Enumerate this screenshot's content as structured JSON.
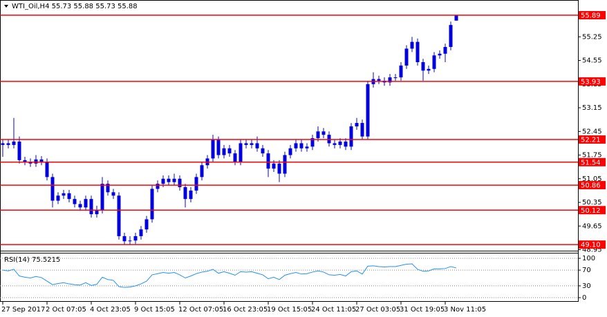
{
  "header": "WTI_Oil,H4  55.73 55.88 55.73 55.88",
  "chart_data": [
    {
      "type": "candlestick",
      "categories": [
        "27 Sep 2017",
        null,
        null,
        null,
        null,
        null,
        null,
        null,
        "2 Oct 07:05",
        null,
        null,
        null,
        null,
        null,
        null,
        null,
        "4 Oct 23:05",
        null,
        null,
        null,
        null,
        null,
        null,
        null,
        "9 Oct 15:05",
        null,
        null,
        null,
        null,
        null,
        null,
        null,
        "12 Oct 07:05",
        null,
        null,
        null,
        null,
        null,
        null,
        null,
        "16 Oct 23:05",
        null,
        null,
        null,
        null,
        null,
        null,
        null,
        "19 Oct 15:05",
        null,
        null,
        null,
        null,
        null,
        null,
        null,
        "24 Oct 11:05",
        null,
        null,
        null,
        null,
        null,
        null,
        null,
        "27 Oct 03:05",
        null,
        null,
        null,
        null,
        null,
        null,
        null,
        "31 Oct 19:05",
        null,
        null,
        null,
        null,
        null,
        null,
        null,
        "3 Nov 11:05",
        null,
        null
      ],
      "open": [
        52.05,
        52.1,
        52.05,
        52.15,
        51.6,
        51.55,
        51.5,
        51.62,
        51.55,
        51.1,
        50.4,
        50.55,
        50.62,
        50.45,
        50.3,
        50.2,
        50.45,
        50.0,
        50.12,
        50.9,
        50.65,
        50.55,
        49.35,
        49.2,
        49.22,
        49.35,
        49.55,
        49.85,
        50.75,
        50.9,
        51.05,
        50.95,
        51.05,
        50.8,
        50.45,
        50.7,
        51.1,
        51.45,
        51.65,
        52.2,
        51.75,
        51.95,
        51.8,
        51.55,
        52.1,
        52.05,
        52.1,
        51.95,
        51.8,
        51.35,
        51.5,
        51.2,
        51.75,
        51.95,
        52.1,
        51.95,
        52.0,
        52.25,
        52.45,
        52.35,
        52.1,
        52.05,
        52.15,
        52.0,
        52.6,
        52.7,
        52.3,
        53.85,
        54.0,
        53.95,
        53.9,
        54.05,
        54.05,
        54.4,
        54.9,
        55.1,
        54.5,
        54.25,
        54.3,
        54.7,
        54.75,
        54.95,
        55.73
      ],
      "high": [
        52.2,
        52.2,
        52.85,
        52.3,
        51.7,
        51.65,
        51.75,
        51.72,
        51.65,
        51.2,
        50.65,
        50.72,
        50.72,
        50.55,
        50.4,
        50.55,
        50.55,
        50.25,
        51.1,
        51.0,
        50.75,
        50.65,
        49.45,
        49.35,
        49.45,
        49.65,
        49.95,
        50.85,
        51.0,
        51.15,
        51.15,
        51.2,
        51.15,
        50.9,
        50.8,
        51.2,
        51.55,
        51.75,
        52.35,
        52.3,
        52.05,
        52.05,
        51.9,
        52.2,
        52.2,
        52.2,
        52.3,
        52.05,
        51.9,
        51.6,
        51.6,
        51.85,
        52.05,
        52.2,
        52.2,
        52.1,
        52.35,
        52.6,
        52.55,
        52.45,
        52.2,
        52.25,
        52.25,
        52.7,
        52.85,
        52.8,
        53.95,
        54.2,
        54.1,
        54.05,
        54.15,
        54.15,
        54.5,
        55.0,
        55.25,
        55.2,
        54.6,
        54.4,
        54.8,
        54.85,
        55.05,
        55.7,
        55.88
      ],
      "low": [
        51.7,
        51.95,
        51.95,
        51.5,
        51.45,
        51.4,
        51.4,
        51.45,
        51.0,
        50.2,
        50.3,
        50.45,
        50.35,
        50.2,
        50.1,
        50.1,
        49.9,
        49.9,
        50.02,
        50.55,
        50.45,
        49.25,
        49.1,
        49.1,
        49.12,
        49.25,
        49.45,
        49.75,
        50.65,
        50.8,
        50.85,
        50.85,
        50.7,
        50.2,
        50.35,
        50.6,
        51.0,
        51.35,
        51.55,
        51.65,
        51.65,
        51.7,
        51.45,
        51.45,
        51.95,
        51.95,
        51.85,
        51.7,
        51.1,
        51.25,
        50.95,
        51.1,
        51.65,
        51.85,
        51.85,
        51.85,
        51.9,
        52.15,
        52.25,
        52.0,
        51.95,
        51.95,
        51.9,
        51.9,
        52.5,
        52.2,
        52.2,
        53.75,
        53.85,
        53.8,
        53.8,
        53.95,
        53.95,
        54.3,
        54.8,
        54.4,
        53.95,
        54.15,
        54.2,
        54.6,
        54.5,
        54.85,
        55.73
      ],
      "close": [
        52.1,
        52.05,
        52.15,
        51.6,
        51.55,
        51.5,
        51.62,
        51.55,
        51.1,
        50.4,
        50.55,
        50.62,
        50.45,
        50.3,
        50.2,
        50.45,
        50.0,
        50.12,
        50.9,
        50.65,
        50.55,
        49.35,
        49.2,
        49.22,
        49.35,
        49.55,
        49.85,
        50.75,
        50.9,
        51.05,
        50.95,
        51.05,
        50.8,
        50.45,
        50.7,
        51.1,
        51.45,
        51.65,
        52.2,
        51.75,
        51.95,
        51.8,
        51.55,
        52.1,
        52.05,
        52.1,
        51.95,
        51.8,
        51.35,
        51.5,
        51.2,
        51.75,
        51.95,
        52.1,
        51.95,
        52.0,
        52.25,
        52.45,
        52.35,
        52.1,
        52.05,
        52.15,
        52.0,
        52.6,
        52.7,
        52.3,
        53.85,
        54.0,
        53.95,
        53.9,
        54.05,
        54.05,
        54.4,
        54.9,
        55.1,
        54.5,
        54.25,
        54.3,
        54.7,
        54.75,
        54.95,
        55.6,
        55.88
      ],
      "color": "#0000e0",
      "ylim": [
        48.94,
        56.34
      ],
      "yticks": [
        55.25,
        54.55,
        53.85,
        53.15,
        52.45,
        51.75,
        51.05,
        50.35,
        49.65,
        48.95
      ],
      "levels": [
        55.89,
        53.93,
        52.21,
        51.54,
        50.86,
        50.12,
        {
          "value": 49.1,
          "label": "49.10"
        }
      ],
      "level_color": "#ff0000"
    },
    {
      "type": "line",
      "name": "RSI(14)",
      "values": [
        70,
        68,
        72,
        55,
        52,
        50,
        54,
        51,
        42,
        33,
        36,
        38,
        35,
        33,
        32,
        38,
        31,
        34,
        52,
        46,
        44,
        28,
        26,
        27,
        30,
        35,
        42,
        58,
        61,
        64,
        62,
        64,
        58,
        50,
        55,
        61,
        65,
        67,
        72,
        62,
        66,
        62,
        57,
        66,
        65,
        66,
        62,
        58,
        48,
        52,
        46,
        57,
        61,
        64,
        60,
        61,
        65,
        68,
        65,
        58,
        57,
        59,
        55,
        66,
        68,
        60,
        80,
        81,
        79,
        78,
        79,
        79,
        82,
        85,
        86,
        72,
        67,
        68,
        73,
        73,
        74,
        79,
        75.5215
      ],
      "color": "#1e90ff",
      "ylim": [
        -10.5,
        114
      ],
      "yticks": [
        100,
        70,
        30,
        0
      ]
    }
  ]
}
